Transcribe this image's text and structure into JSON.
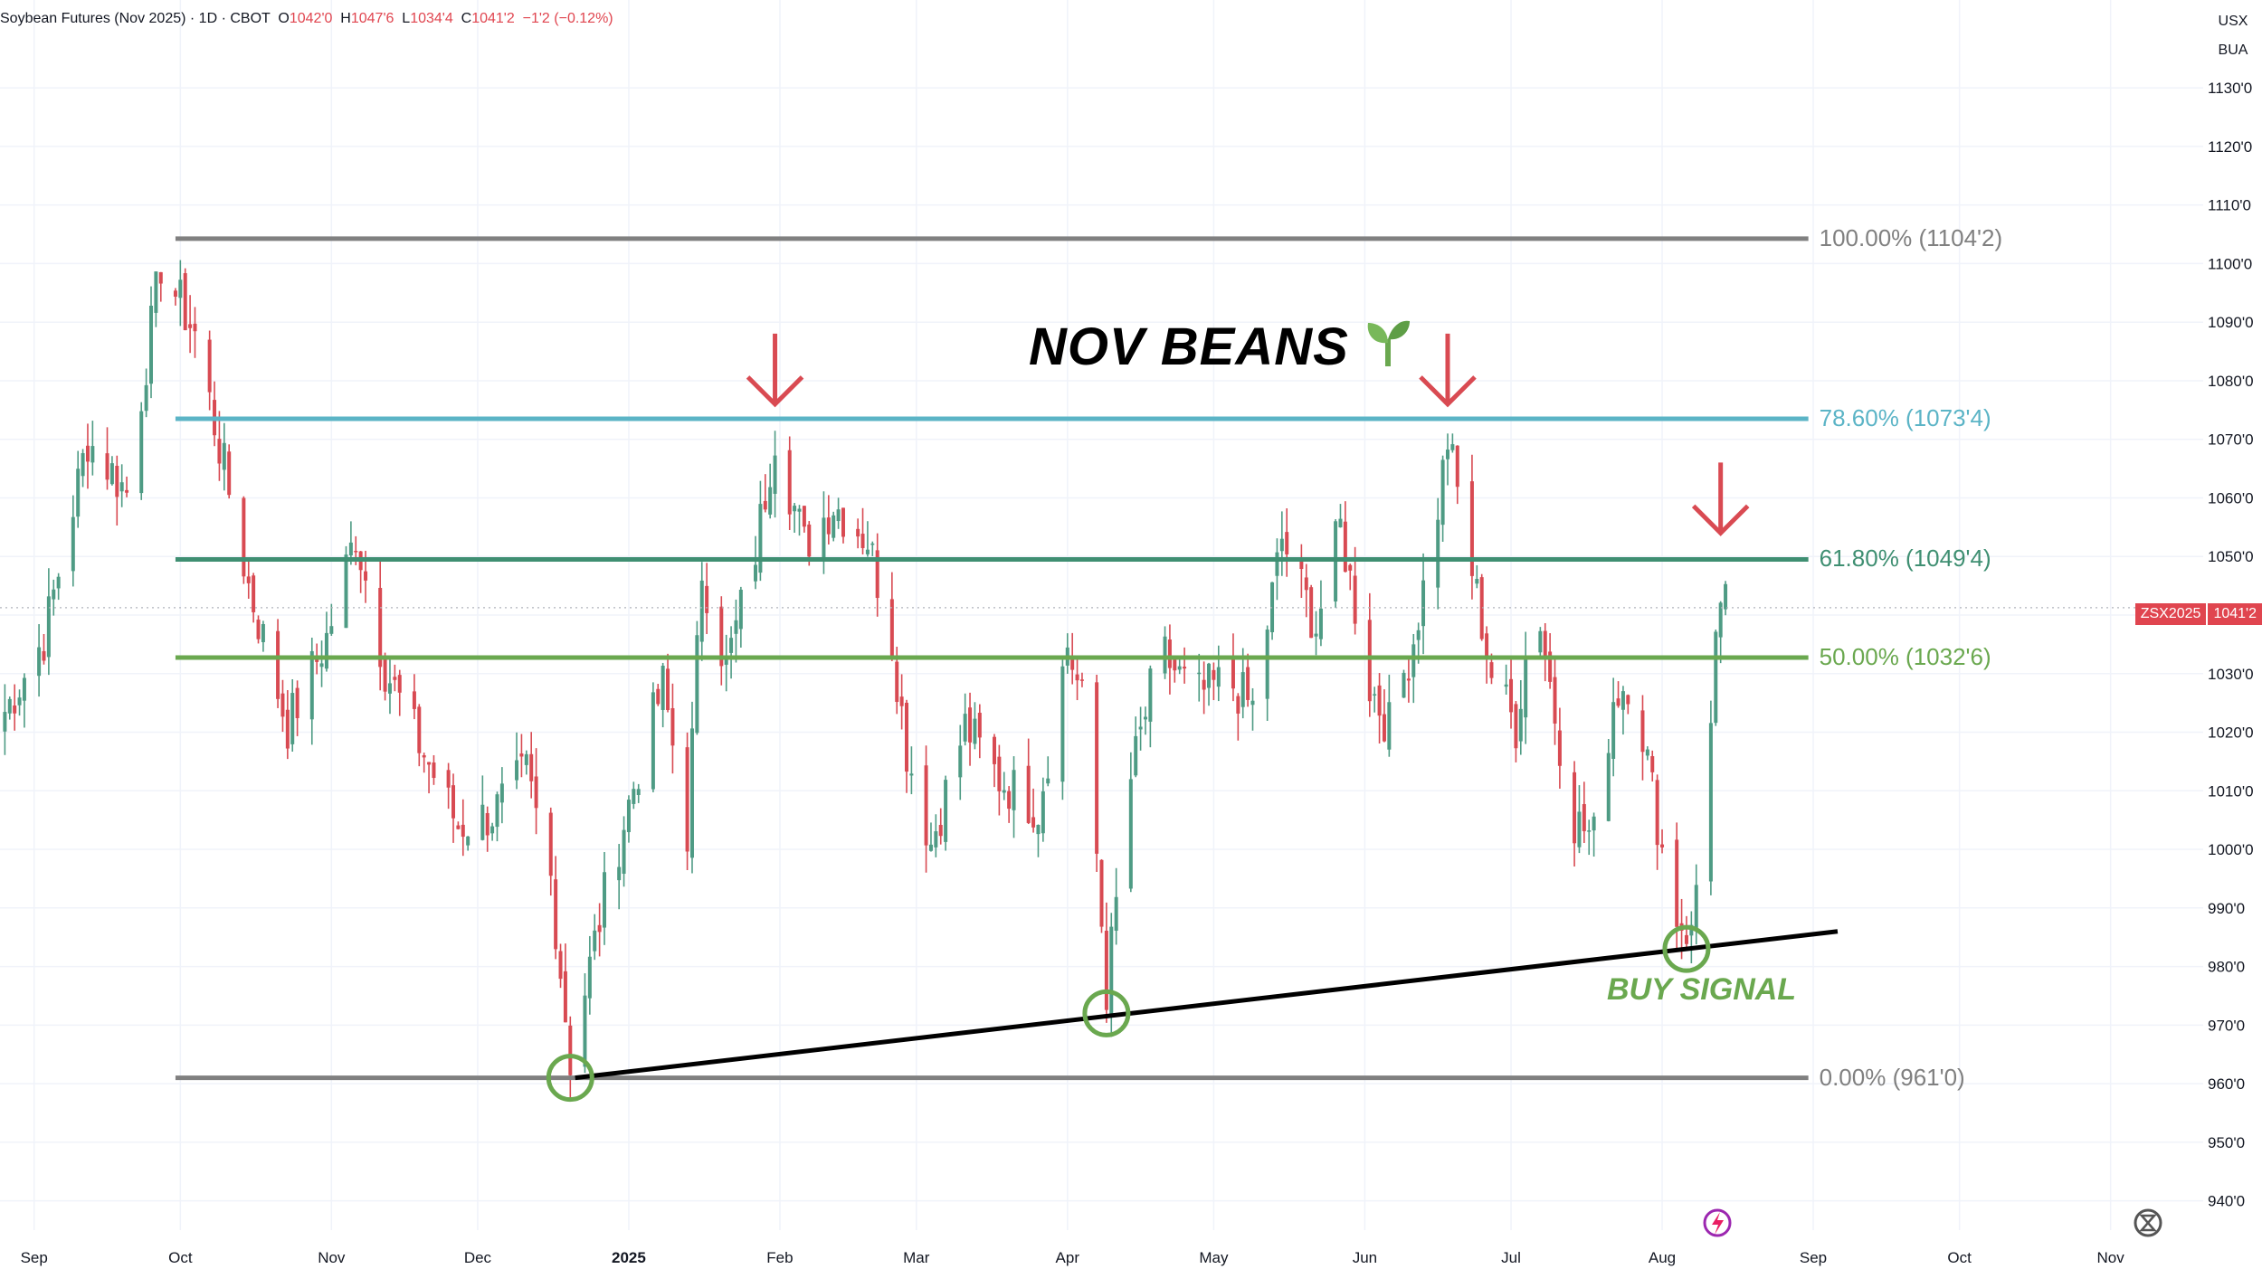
{
  "header": {
    "symbol_text": "Soybean Futures (Nov 2025) · 1D · CBOT",
    "open_key": "O",
    "open_val": "1042'0",
    "high_key": "H",
    "high_val": "1047'6",
    "low_key": "L",
    "low_val": "1034'4",
    "close_key": "C",
    "close_val": "1041'2",
    "change": "−1'2 (−0.12%)"
  },
  "currency": "USX",
  "unit": "BUA",
  "annotations": {
    "title": "NOV BEANS",
    "title_icon": "seedling-icon",
    "buy_signal": "BUY SIGNAL",
    "symbol_tag": "ZSX2025",
    "last_price": "1041'2"
  },
  "colors": {
    "up": "#4e9b84",
    "down": "#d84a52",
    "fib_100": "#808080",
    "fib_786": "#5bb4c6",
    "fib_618": "#3f8f72",
    "fib_500": "#6aa84f",
    "fib_0": "#808080",
    "arrow": "#d94a52",
    "circle": "#6aa84f",
    "trendline": "#000000"
  },
  "chart_data": {
    "type": "candlestick",
    "y_axis": {
      "range": [
        935,
        1145
      ],
      "ticks": [
        "940'0",
        "950'0",
        "960'0",
        "970'0",
        "980'0",
        "990'0",
        "1000'0",
        "1010'0",
        "1020'0",
        "1030'0",
        "1040'0",
        "1050'0",
        "1060'0",
        "1070'0",
        "1080'0",
        "1090'0",
        "1100'0",
        "1110'0",
        "1120'0",
        "1130'0"
      ],
      "tick_values": [
        940,
        950,
        960,
        970,
        980,
        990,
        1000,
        1010,
        1020,
        1030,
        1040,
        1050,
        1060,
        1070,
        1080,
        1090,
        1100,
        1110,
        1120,
        1130
      ]
    },
    "x_axis": {
      "range": [
        "2024-08-25",
        "2025-11-20"
      ],
      "labels": [
        "Sep",
        "Oct",
        "Nov",
        "Dec",
        "2025",
        "Feb",
        "Mar",
        "Apr",
        "May",
        "Jun",
        "Jul",
        "Aug",
        "Sep",
        "Oct",
        "Nov"
      ],
      "label_dates": [
        "2024-09-01",
        "2024-10-01",
        "2024-11-01",
        "2024-12-01",
        "2025-01-01",
        "2025-02-01",
        "2025-03-01",
        "2025-04-01",
        "2025-05-01",
        "2025-06-01",
        "2025-07-01",
        "2025-08-01",
        "2025-09-01",
        "2025-10-01",
        "2025-11-01"
      ]
    },
    "fib_levels": [
      {
        "label": "100.00% (1104'2)",
        "value": 1104.25,
        "color_key": "fib_100"
      },
      {
        "label": "78.60% (1073'4)",
        "value": 1073.5,
        "color_key": "fib_786"
      },
      {
        "label": "61.80% (1049'4)",
        "value": 1049.5,
        "color_key": "fib_618"
      },
      {
        "label": "50.00% (1032'6)",
        "value": 1032.75,
        "color_key": "fib_500"
      },
      {
        "label": "0.00% (961'0)",
        "value": 961,
        "color_key": "fib_0"
      }
    ],
    "fib_start": "2024-09-30",
    "fib_end": "2025-08-31",
    "trendline": {
      "points": [
        {
          "date": "2024-12-21",
          "value": 961
        },
        {
          "date": "2025-09-06",
          "value": 986
        }
      ]
    },
    "support_circles": [
      {
        "date": "2024-12-20",
        "value": 961
      },
      {
        "date": "2025-04-09",
        "value": 972
      },
      {
        "date": "2025-08-06",
        "value": 983
      }
    ],
    "resistance_arrows": [
      {
        "date": "2025-01-31",
        "value": 1076
      },
      {
        "date": "2025-06-18",
        "value": 1076
      },
      {
        "date": "2025-08-13",
        "value": 1054
      }
    ],
    "anchors": [
      {
        "date": "2024-08-25",
        "value": 1022
      },
      {
        "date": "2024-09-03",
        "value": 1036
      },
      {
        "date": "2024-09-12",
        "value": 1070
      },
      {
        "date": "2024-09-20",
        "value": 1061
      },
      {
        "date": "2024-09-27",
        "value": 1100
      },
      {
        "date": "2024-10-04",
        "value": 1088
      },
      {
        "date": "2024-10-10",
        "value": 1065
      },
      {
        "date": "2024-10-15",
        "value": 1045
      },
      {
        "date": "2024-10-23",
        "value": 1021
      },
      {
        "date": "2024-10-31",
        "value": 1036
      },
      {
        "date": "2024-11-06",
        "value": 1054
      },
      {
        "date": "2024-11-12",
        "value": 1031
      },
      {
        "date": "2024-11-19",
        "value": 1018
      },
      {
        "date": "2024-11-27",
        "value": 1004
      },
      {
        "date": "2024-12-04",
        "value": 1006
      },
      {
        "date": "2024-12-11",
        "value": 1013
      },
      {
        "date": "2024-12-16",
        "value": 995
      },
      {
        "date": "2024-12-20",
        "value": 964
      },
      {
        "date": "2024-12-27",
        "value": 992
      },
      {
        "date": "2025-01-03",
        "value": 1014
      },
      {
        "date": "2025-01-08",
        "value": 1028
      },
      {
        "date": "2025-01-13",
        "value": 1003
      },
      {
        "date": "2025-01-16",
        "value": 1048
      },
      {
        "date": "2025-01-21",
        "value": 1031
      },
      {
        "date": "2025-01-27",
        "value": 1051
      },
      {
        "date": "2025-01-31",
        "value": 1071
      },
      {
        "date": "2025-02-06",
        "value": 1052
      },
      {
        "date": "2025-02-12",
        "value": 1059
      },
      {
        "date": "2025-02-19",
        "value": 1053
      },
      {
        "date": "2025-02-24",
        "value": 1036
      },
      {
        "date": "2025-02-27",
        "value": 1017
      },
      {
        "date": "2025-03-04",
        "value": 1001
      },
      {
        "date": "2025-03-11",
        "value": 1021
      },
      {
        "date": "2025-03-18",
        "value": 1012
      },
      {
        "date": "2025-03-26",
        "value": 1007
      },
      {
        "date": "2025-04-01",
        "value": 1035
      },
      {
        "date": "2025-04-05",
        "value": 1022
      },
      {
        "date": "2025-04-09",
        "value": 976
      },
      {
        "date": "2025-04-14",
        "value": 1012
      },
      {
        "date": "2025-04-20",
        "value": 1034
      },
      {
        "date": "2025-04-27",
        "value": 1026
      },
      {
        "date": "2025-05-04",
        "value": 1029
      },
      {
        "date": "2025-05-09",
        "value": 1024
      },
      {
        "date": "2025-05-15",
        "value": 1053
      },
      {
        "date": "2025-05-22",
        "value": 1038
      },
      {
        "date": "2025-05-27",
        "value": 1055
      },
      {
        "date": "2025-06-02",
        "value": 1028
      },
      {
        "date": "2025-06-06",
        "value": 1021
      },
      {
        "date": "2025-06-11",
        "value": 1036
      },
      {
        "date": "2025-06-15",
        "value": 1053
      },
      {
        "date": "2025-06-18",
        "value": 1070
      },
      {
        "date": "2025-06-22",
        "value": 1052
      },
      {
        "date": "2025-06-27",
        "value": 1030
      },
      {
        "date": "2025-07-02",
        "value": 1021
      },
      {
        "date": "2025-07-06",
        "value": 1045
      },
      {
        "date": "2025-07-10",
        "value": 1023
      },
      {
        "date": "2025-07-14",
        "value": 1005
      },
      {
        "date": "2025-07-18",
        "value": 1002
      },
      {
        "date": "2025-07-22",
        "value": 1026
      },
      {
        "date": "2025-07-26",
        "value": 1030
      },
      {
        "date": "2025-07-30",
        "value": 1010
      },
      {
        "date": "2025-08-03",
        "value": 990
      },
      {
        "date": "2025-08-07",
        "value": 985
      },
      {
        "date": "2025-08-10",
        "value": 1012
      },
      {
        "date": "2025-08-12",
        "value": 1036
      },
      {
        "date": "2025-08-14",
        "value": 1041.25
      }
    ]
  }
}
